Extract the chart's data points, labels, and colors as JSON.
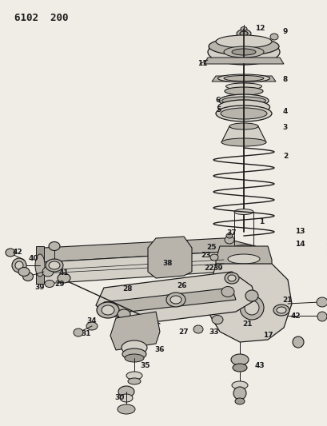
{
  "title": "6102  200",
  "bg_color": "#f0ede6",
  "line_color": "#1a1a1a",
  "fill_light": "#d4d0c8",
  "fill_mid": "#b8b4ac",
  "fill_dark": "#a09c94",
  "title_fontsize": 9,
  "label_fontsize": 6.5,
  "fig_w": 4.1,
  "fig_h": 5.33,
  "dpi": 100
}
